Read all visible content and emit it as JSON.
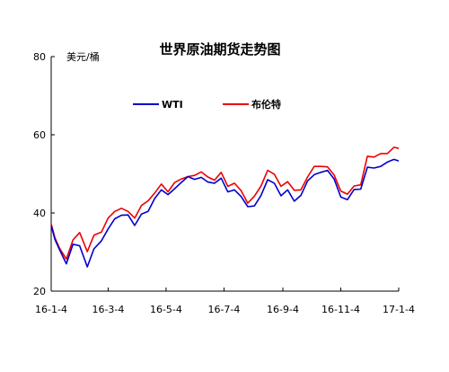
{
  "chart_data": {
    "type": "line",
    "title": "世界原油期货走势图",
    "unit_label": "美元/桶",
    "xlabel": "",
    "ylabel": "",
    "ylim": [
      20,
      80
    ],
    "yticks": [
      "20",
      "40",
      "60",
      "80"
    ],
    "xticks": [
      "16-1-4",
      "16-3-4",
      "16-5-4",
      "16-7-4",
      "16-9-4",
      "16-11-4",
      "17-1-4"
    ],
    "grid": false,
    "legend": "top",
    "colors": {
      "WTI": "#0000cc",
      "布伦特": "#ee0000"
    },
    "series": [
      {
        "name": "WTI",
        "points": [
          [
            "2016-01-04",
            36.8
          ],
          [
            "2016-01-08",
            33.2
          ],
          [
            "2016-01-13",
            30.5
          ],
          [
            "2016-01-20",
            27.0
          ],
          [
            "2016-01-27",
            32.0
          ],
          [
            "2016-02-03",
            31.6
          ],
          [
            "2016-02-11",
            26.2
          ],
          [
            "2016-02-18",
            30.8
          ],
          [
            "2016-02-26",
            32.9
          ],
          [
            "2016-03-04",
            35.9
          ],
          [
            "2016-03-11",
            38.5
          ],
          [
            "2016-03-18",
            39.4
          ],
          [
            "2016-03-25",
            39.5
          ],
          [
            "2016-04-01",
            36.8
          ],
          [
            "2016-04-08",
            39.7
          ],
          [
            "2016-04-15",
            40.4
          ],
          [
            "2016-04-22",
            43.7
          ],
          [
            "2016-04-29",
            45.9
          ],
          [
            "2016-05-06",
            44.7
          ],
          [
            "2016-05-13",
            46.2
          ],
          [
            "2016-05-20",
            47.8
          ],
          [
            "2016-05-27",
            49.3
          ],
          [
            "2016-06-03",
            48.6
          ],
          [
            "2016-06-10",
            49.1
          ],
          [
            "2016-06-17",
            47.9
          ],
          [
            "2016-06-24",
            47.6
          ],
          [
            "2016-07-01",
            48.9
          ],
          [
            "2016-07-08",
            45.4
          ],
          [
            "2016-07-15",
            45.9
          ],
          [
            "2016-07-22",
            44.2
          ],
          [
            "2016-07-29",
            41.6
          ],
          [
            "2016-08-05",
            41.8
          ],
          [
            "2016-08-12",
            44.5
          ],
          [
            "2016-08-19",
            48.5
          ],
          [
            "2016-08-26",
            47.6
          ],
          [
            "2016-09-02",
            44.4
          ],
          [
            "2016-09-09",
            45.9
          ],
          [
            "2016-09-16",
            43.0
          ],
          [
            "2016-09-23",
            44.5
          ],
          [
            "2016-09-30",
            48.2
          ],
          [
            "2016-10-07",
            49.8
          ],
          [
            "2016-10-14",
            50.4
          ],
          [
            "2016-10-21",
            50.9
          ],
          [
            "2016-10-28",
            48.7
          ],
          [
            "2016-11-04",
            44.1
          ],
          [
            "2016-11-11",
            43.4
          ],
          [
            "2016-11-18",
            46.0
          ],
          [
            "2016-11-25",
            46.1
          ],
          [
            "2016-12-02",
            51.7
          ],
          [
            "2016-12-09",
            51.5
          ],
          [
            "2016-12-16",
            51.9
          ],
          [
            "2016-12-23",
            53.0
          ],
          [
            "2016-12-30",
            53.7
          ],
          [
            "2017-01-04",
            53.3
          ]
        ]
      },
      {
        "name": "布伦特",
        "points": [
          [
            "2016-01-04",
            37.2
          ],
          [
            "2016-01-08",
            33.6
          ],
          [
            "2016-01-13",
            30.9
          ],
          [
            "2016-01-20",
            28.2
          ],
          [
            "2016-01-27",
            33.1
          ],
          [
            "2016-02-03",
            35.0
          ],
          [
            "2016-02-11",
            30.1
          ],
          [
            "2016-02-18",
            34.3
          ],
          [
            "2016-02-26",
            35.1
          ],
          [
            "2016-03-04",
            38.7
          ],
          [
            "2016-03-11",
            40.4
          ],
          [
            "2016-03-18",
            41.2
          ],
          [
            "2016-03-25",
            40.4
          ],
          [
            "2016-04-01",
            38.7
          ],
          [
            "2016-04-08",
            41.9
          ],
          [
            "2016-04-15",
            43.1
          ],
          [
            "2016-04-22",
            45.1
          ],
          [
            "2016-04-29",
            47.4
          ],
          [
            "2016-05-06",
            45.4
          ],
          [
            "2016-05-13",
            47.8
          ],
          [
            "2016-05-20",
            48.7
          ],
          [
            "2016-05-27",
            49.3
          ],
          [
            "2016-06-03",
            49.6
          ],
          [
            "2016-06-10",
            50.5
          ],
          [
            "2016-06-17",
            49.2
          ],
          [
            "2016-06-24",
            48.4
          ],
          [
            "2016-07-01",
            50.4
          ],
          [
            "2016-07-08",
            46.8
          ],
          [
            "2016-07-15",
            47.6
          ],
          [
            "2016-07-22",
            45.7
          ],
          [
            "2016-07-29",
            42.5
          ],
          [
            "2016-08-05",
            44.3
          ],
          [
            "2016-08-12",
            46.9
          ],
          [
            "2016-08-19",
            50.9
          ],
          [
            "2016-08-26",
            49.9
          ],
          [
            "2016-09-02",
            46.8
          ],
          [
            "2016-09-09",
            48.0
          ],
          [
            "2016-09-16",
            45.8
          ],
          [
            "2016-09-23",
            45.9
          ],
          [
            "2016-09-30",
            49.2
          ],
          [
            "2016-10-07",
            51.9
          ],
          [
            "2016-10-14",
            51.9
          ],
          [
            "2016-10-21",
            51.8
          ],
          [
            "2016-10-28",
            49.7
          ],
          [
            "2016-11-04",
            45.6
          ],
          [
            "2016-11-11",
            44.8
          ],
          [
            "2016-11-18",
            46.9
          ],
          [
            "2016-11-25",
            47.2
          ],
          [
            "2016-12-02",
            54.5
          ],
          [
            "2016-12-09",
            54.3
          ],
          [
            "2016-12-16",
            55.2
          ],
          [
            "2016-12-23",
            55.2
          ],
          [
            "2016-12-30",
            56.8
          ],
          [
            "2017-01-04",
            56.5
          ]
        ]
      }
    ]
  }
}
